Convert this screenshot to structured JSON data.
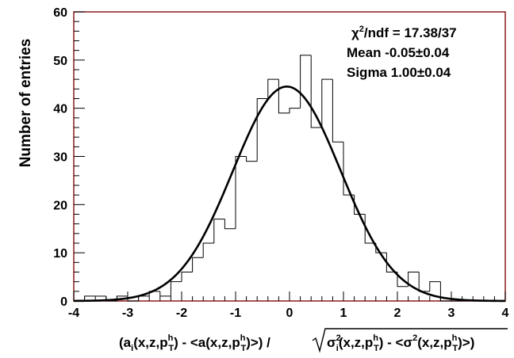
{
  "chart_data": {
    "type": "bar",
    "title": "",
    "ylabel": "Number of entries",
    "xlabel": "(a_i(x,z,p_T^h) - <a(x,z,p_T^h)>) / sqrt(σ_i^2(x,z,p_T^h) - <σ^2(x,z,p_T^h)>)",
    "xlim": [
      -4,
      4
    ],
    "ylim": [
      0,
      60
    ],
    "x_ticks": [
      "-4",
      "-3",
      "-2",
      "-1",
      "0",
      "1",
      "2",
      "3",
      "4"
    ],
    "y_ticks": [
      "0",
      "10",
      "20",
      "30",
      "40",
      "50",
      "60"
    ],
    "bin_width": 0.2,
    "bin_edges_start": -4.0,
    "series": [
      {
        "kind": "histogram",
        "values": [
          0,
          1,
          1,
          0,
          1,
          0,
          1,
          2,
          1,
          4,
          6,
          9,
          12,
          17,
          15,
          30,
          29,
          42,
          46,
          39,
          40,
          51,
          36,
          46,
          33,
          22,
          18,
          12,
          10,
          6,
          3,
          6,
          2,
          4,
          0,
          0,
          0,
          0,
          0,
          0
        ]
      },
      {
        "kind": "gaussian-fit",
        "amplitude": 44.5,
        "mean": -0.05,
        "sigma": 1.0
      }
    ],
    "annotations": {
      "chi2_prefix": "χ",
      "chi2_sup": "2",
      "chi2_rest": "/ndf = 17.38/37",
      "mean": "Mean -0.05±0.04",
      "sigma": "Sigma 1.00±0.04"
    },
    "xlabel_parts": {
      "p1": "(a",
      "i": "i",
      "p2": "(x,z,p",
      "h": "h",
      "T": "T",
      "p3": ") - <a(x,z,p",
      "p4": ")>) / ",
      "sigma": "σ",
      "sq": "2",
      "p5": "(x,z,p",
      "p6": ") - <σ",
      "p7": "(x,z,p",
      "p8": ")>)"
    },
    "colors": {
      "frame": "#8b1a1a",
      "line": "#000000",
      "background": "#ffffff"
    }
  }
}
